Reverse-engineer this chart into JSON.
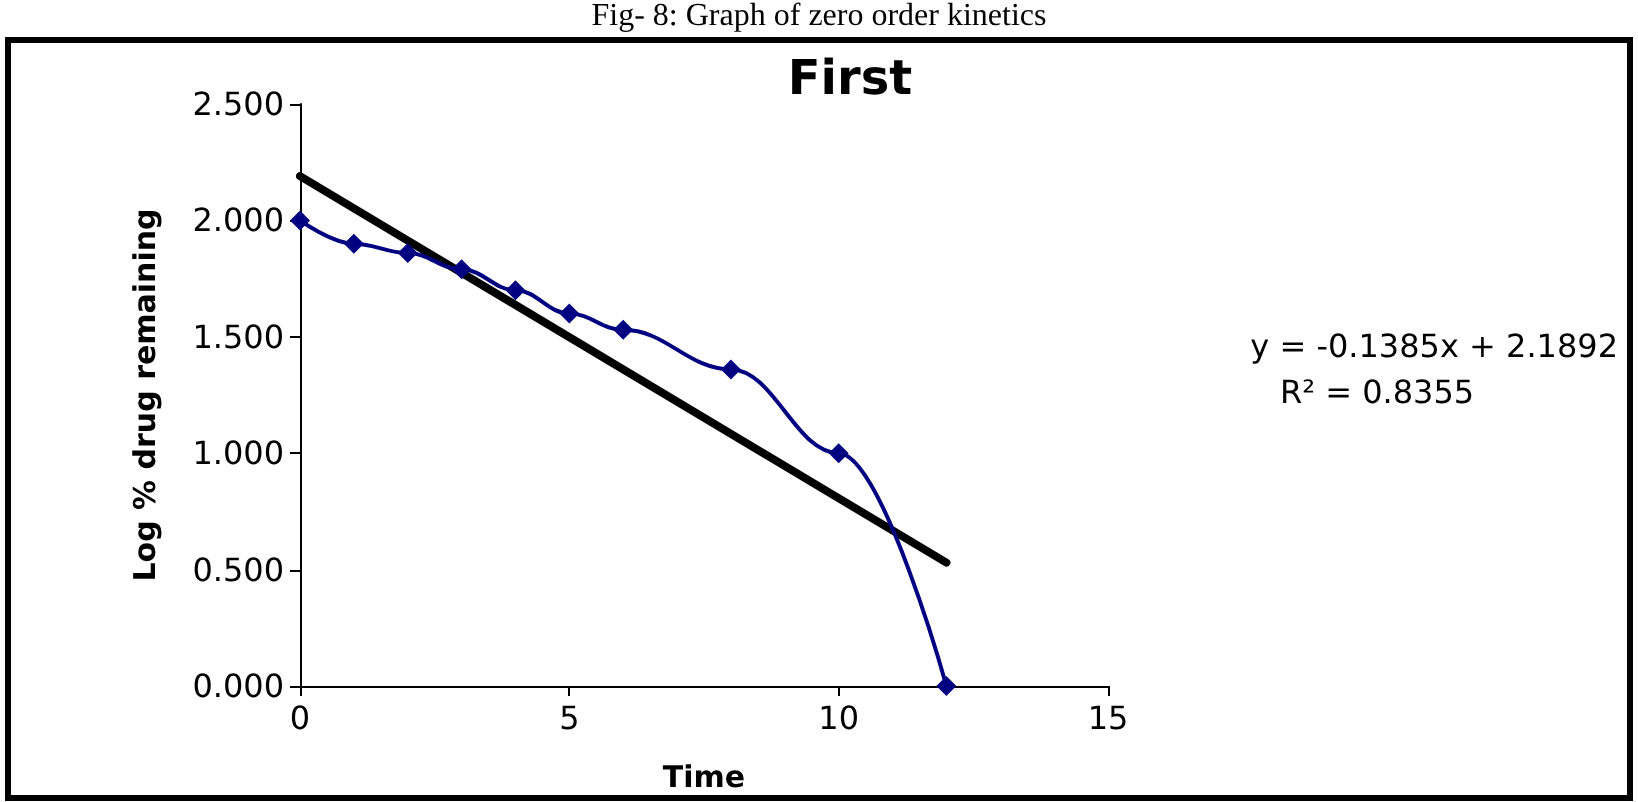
{
  "chart_data": {
    "type": "line",
    "title": "First",
    "xlabel": "Time",
    "ylabel": "Log % drug remaining",
    "annotations": [
      "Fig- 8: Graph of zero order kinetics",
      "y = -0.1385x + 2.1892",
      "R² = 0.8355"
    ],
    "series": [
      {
        "color": "#000080",
        "x": [
          0,
          1,
          2,
          3,
          4,
          5,
          6,
          8,
          10,
          12
        ],
        "values": [
          2.0,
          1.9,
          1.86,
          1.79,
          1.7,
          1.6,
          1.53,
          1.36,
          1.0,
          0.0
        ],
        "marker": "diamond",
        "line_style": "solid"
      },
      {
        "color": "#000000",
        "x": [
          0,
          12
        ],
        "values": [
          2.19,
          0.53
        ],
        "marker": "none",
        "line_style": "solid"
      }
    ],
    "xlim": [
      0,
      15
    ],
    "xticks": [
      0,
      5,
      10,
      15
    ],
    "ylim": [
      0,
      2.5
    ],
    "yticks": [
      {
        "value": 0,
        "label": "0.000"
      },
      {
        "value": 0.5,
        "label": "0.500"
      },
      {
        "value": 1,
        "label": "1.000"
      },
      {
        "value": 1.5,
        "label": "1.500"
      },
      {
        "value": 2,
        "label": "2.000"
      },
      {
        "value": 2.5,
        "label": "2.500"
      }
    ],
    "grid": false
  }
}
